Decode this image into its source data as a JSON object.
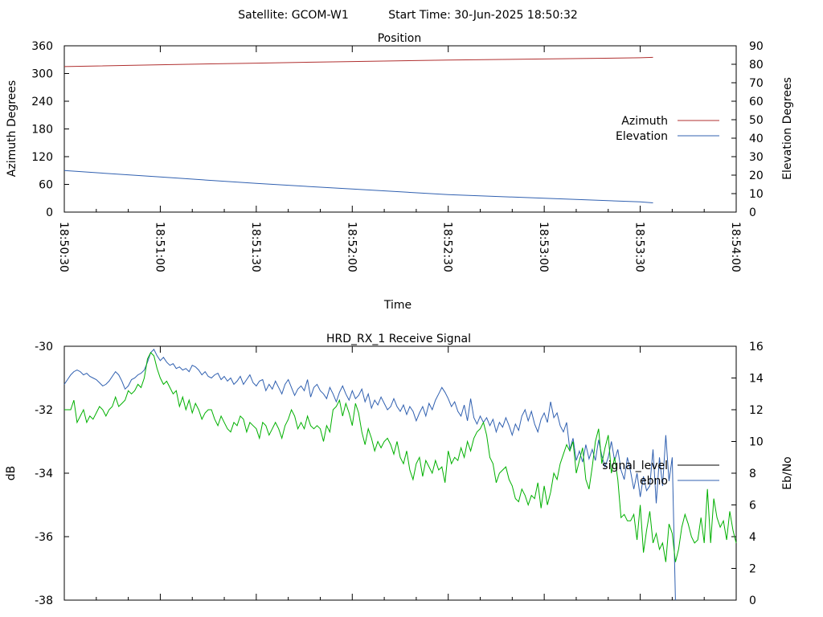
{
  "header": {
    "satellite": "Satellite: GCOM-W1",
    "start_time": "Start Time: 30-Jun-2025 18:50:32"
  },
  "colors": {
    "azimuth": "#b03030",
    "elevation": "#3060b0",
    "signal_level": "#000000",
    "ebno_line": "#3060b0",
    "green_trace": "#00b000"
  },
  "chart_data": [
    {
      "type": "line",
      "title": "Position",
      "xlabel": "Time",
      "ylabel_left": "Azimuth Degrees",
      "ylabel_right": "Elevation Degrees",
      "x_tick_labels": [
        "18:50:30",
        "18:51:00",
        "18:51:30",
        "18:52:00",
        "18:52:30",
        "18:53:00",
        "18:53:30",
        "18:54:00"
      ],
      "xlim_seconds_from_first_tick": [
        0,
        210
      ],
      "y_left_ticks": [
        0,
        60,
        120,
        180,
        240,
        300,
        360
      ],
      "ylim_left": [
        0,
        360
      ],
      "y_right_ticks": [
        0,
        10,
        20,
        30,
        40,
        50,
        60,
        70,
        80,
        90
      ],
      "ylim_right": [
        0,
        90
      ],
      "legend_position": "right",
      "series": [
        {
          "name": "Azimuth",
          "axis": "left",
          "x_seconds_from_first_tick": [
            0,
            30,
            60,
            90,
            120,
            150,
            180,
            184
          ],
          "y": [
            315,
            319,
            322.5,
            326,
            329,
            331.5,
            334,
            335
          ]
        },
        {
          "name": "Elevation",
          "axis": "right",
          "x_seconds_from_first_tick": [
            0,
            30,
            60,
            90,
            120,
            150,
            180,
            184
          ],
          "y": [
            22.5,
            19,
            15.5,
            12.5,
            9.5,
            7.5,
            5.5,
            5
          ]
        }
      ]
    },
    {
      "type": "line",
      "title": "HRD_RX_1 Receive Signal",
      "ylabel_left": "dB",
      "ylabel_right": "Eb/No",
      "y_left_ticks": [
        -30,
        -32,
        -34,
        -36,
        -38
      ],
      "ylim_left": [
        -38,
        -30
      ],
      "y_right_ticks": [
        0,
        2,
        4,
        6,
        8,
        10,
        12,
        14,
        16
      ],
      "ylim_right": [
        0,
        16
      ],
      "xlim_seconds_from_first_tick": [
        0,
        210
      ],
      "legend_position": "right",
      "legend": [
        "signal_level",
        "ebno"
      ],
      "series": [
        {
          "name": "ebno",
          "axis": "right",
          "x_start": 0,
          "x_step": 1,
          "y": [
            13.6,
            13.9,
            14.2,
            14.4,
            14.5,
            14.4,
            14.2,
            14.3,
            14.1,
            14.0,
            13.9,
            13.7,
            13.5,
            13.6,
            13.8,
            14.1,
            14.4,
            14.2,
            13.8,
            13.3,
            13.5,
            13.9,
            14.0,
            14.2,
            14.3,
            14.5,
            15.0,
            15.6,
            15.8,
            15.4,
            15.1,
            15.3,
            15.0,
            14.8,
            14.9,
            14.6,
            14.7,
            14.5,
            14.6,
            14.4,
            14.8,
            14.7,
            14.5,
            14.2,
            14.4,
            14.1,
            14.0,
            14.2,
            14.3,
            13.9,
            14.1,
            13.8,
            14.0,
            13.6,
            13.8,
            14.1,
            13.6,
            13.9,
            14.2,
            13.7,
            13.5,
            13.8,
            13.9,
            13.2,
            13.6,
            13.3,
            13.8,
            13.4,
            13.0,
            13.6,
            13.9,
            13.4,
            12.9,
            13.3,
            13.5,
            13.2,
            13.9,
            12.8,
            13.4,
            13.6,
            13.2,
            13.0,
            12.7,
            13.4,
            13.0,
            12.5,
            13.1,
            13.5,
            13.0,
            12.6,
            13.2,
            12.7,
            12.9,
            13.3,
            12.5,
            13.0,
            12.1,
            12.6,
            12.3,
            12.8,
            12.4,
            12.0,
            12.2,
            12.7,
            12.2,
            11.9,
            12.3,
            11.7,
            12.2,
            11.9,
            11.3,
            11.8,
            12.2,
            11.6,
            12.4,
            12.0,
            12.6,
            13.0,
            13.4,
            13.1,
            12.7,
            12.2,
            12.5,
            11.9,
            11.6,
            12.3,
            11.3,
            12.7,
            11.5,
            11.1,
            11.6,
            11.2,
            11.5,
            11.0,
            11.4,
            10.6,
            11.2,
            10.9,
            11.5,
            11.0,
            10.4,
            11.1,
            10.7,
            11.6,
            12.0,
            11.3,
            11.9,
            11.1,
            10.6,
            11.4,
            11.8,
            11.2,
            12.5,
            11.5,
            11.8,
            11.0,
            10.6,
            11.2,
            9.5,
            10.2,
            8.8,
            9.4,
            8.7,
            9.8,
            8.9,
            9.5,
            8.8,
            10.1,
            9.1,
            8.4,
            9.0,
            10.0,
            8.8,
            9.5,
            8.2,
            7.6,
            9.0,
            8.1,
            7.0,
            8.0,
            6.5,
            7.8,
            6.9,
            7.2,
            9.5,
            6.1,
            9.0,
            7.2,
            10.4,
            7.5,
            9.0,
            0.0
          ]
        },
        {
          "name": "",
          "axis": "left",
          "x_start": 0,
          "x_step": 1,
          "y": [
            -32.0,
            -32.0,
            -32.0,
            -31.7,
            -32.4,
            -32.2,
            -32.0,
            -32.4,
            -32.2,
            -32.3,
            -32.1,
            -31.9,
            -32.0,
            -32.2,
            -32.0,
            -31.9,
            -31.6,
            -31.9,
            -31.8,
            -31.7,
            -31.4,
            -31.5,
            -31.4,
            -31.2,
            -31.3,
            -31.0,
            -30.4,
            -30.2,
            -30.3,
            -30.7,
            -31.0,
            -31.2,
            -31.1,
            -31.3,
            -31.5,
            -31.4,
            -31.9,
            -31.6,
            -32.0,
            -31.7,
            -32.1,
            -31.8,
            -32.0,
            -32.3,
            -32.1,
            -32.0,
            -32.0,
            -32.3,
            -32.5,
            -32.2,
            -32.4,
            -32.6,
            -32.7,
            -32.4,
            -32.5,
            -32.2,
            -32.3,
            -32.7,
            -32.4,
            -32.5,
            -32.6,
            -32.9,
            -32.4,
            -32.5,
            -32.8,
            -32.6,
            -32.4,
            -32.6,
            -32.9,
            -32.5,
            -32.3,
            -32.0,
            -32.2,
            -32.6,
            -32.4,
            -32.6,
            -32.2,
            -32.5,
            -32.6,
            -32.5,
            -32.6,
            -33.0,
            -32.5,
            -32.7,
            -32.0,
            -31.9,
            -31.7,
            -32.2,
            -31.8,
            -32.1,
            -32.5,
            -31.8,
            -32.1,
            -32.7,
            -33.1,
            -32.6,
            -32.9,
            -33.3,
            -33.0,
            -33.2,
            -33.0,
            -32.9,
            -33.1,
            -33.4,
            -33.0,
            -33.5,
            -33.7,
            -33.3,
            -33.9,
            -34.2,
            -33.7,
            -33.5,
            -34.1,
            -33.6,
            -33.8,
            -34.0,
            -33.6,
            -33.9,
            -33.8,
            -34.3,
            -33.3,
            -33.7,
            -33.5,
            -33.6,
            -33.2,
            -33.5,
            -33.0,
            -33.3,
            -32.9,
            -32.7,
            -32.6,
            -32.4,
            -32.8,
            -33.5,
            -33.7,
            -34.3,
            -34.0,
            -33.9,
            -33.8,
            -34.2,
            -34.4,
            -34.8,
            -34.9,
            -34.5,
            -34.7,
            -35.0,
            -34.7,
            -34.8,
            -34.3,
            -35.1,
            -34.4,
            -35.0,
            -34.6,
            -34.0,
            -34.2,
            -33.7,
            -33.4,
            -33.1,
            -33.3,
            -33.0,
            -34.0,
            -33.6,
            -33.2,
            -34.2,
            -34.5,
            -33.8,
            -33.0,
            -32.6,
            -33.7,
            -33.2,
            -32.8,
            -34.0,
            -33.5,
            -34.2,
            -35.4,
            -35.3,
            -35.5,
            -35.5,
            -35.3,
            -36.1,
            -35.0,
            -36.5,
            -35.8,
            -35.2,
            -36.2,
            -35.9,
            -36.4,
            -36.2,
            -36.8,
            -35.6,
            -35.9,
            -36.8,
            -36.4,
            -35.7,
            -35.3,
            -35.6,
            -36.0,
            -36.2,
            -36.1,
            -35.4,
            -36.2,
            -34.5,
            -36.2,
            -34.8,
            -35.4,
            -35.7,
            -35.5,
            -36.1,
            -35.2,
            -35.8,
            -36.2
          ]
        }
      ]
    }
  ]
}
